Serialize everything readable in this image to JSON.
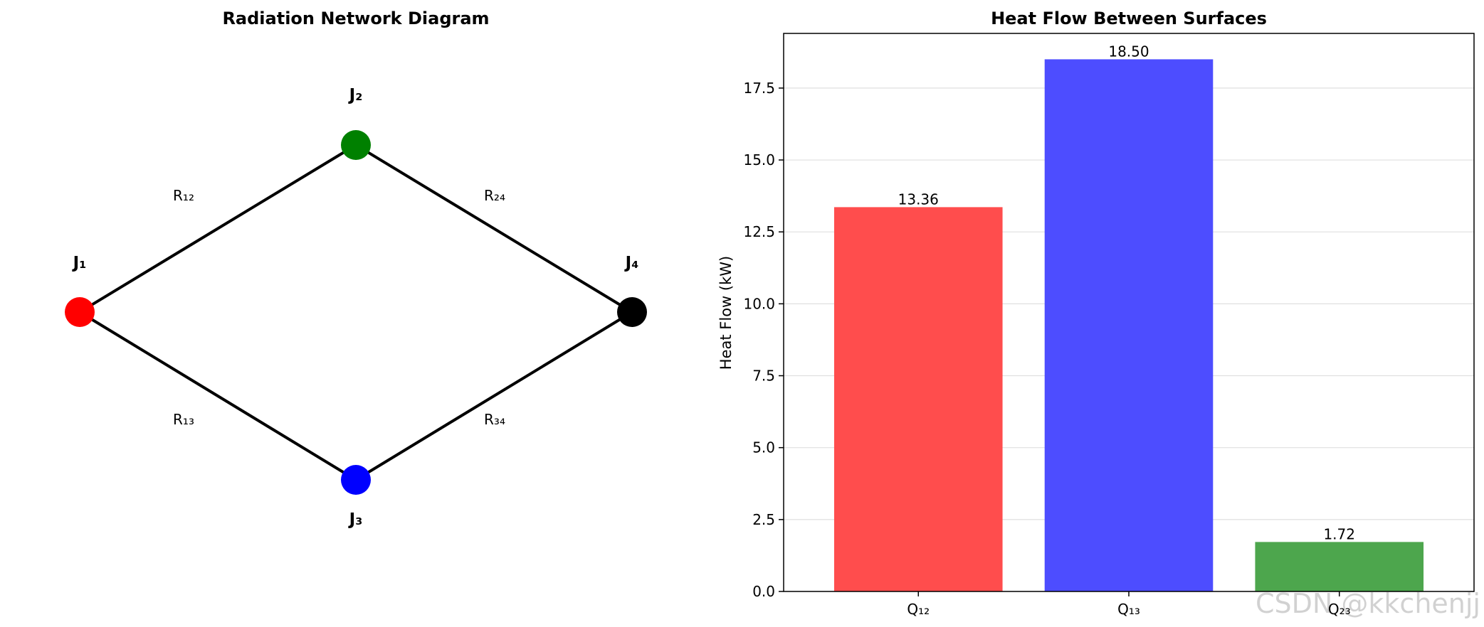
{
  "network": {
    "title": "Radiation Network Diagram",
    "nodes": [
      {
        "id": "J1",
        "label": "J₁",
        "color": "#ff0000"
      },
      {
        "id": "J2",
        "label": "J₂",
        "color": "#008000"
      },
      {
        "id": "J3",
        "label": "J₃",
        "color": "#0000ff"
      },
      {
        "id": "J4",
        "label": "J₄",
        "color": "#000000"
      }
    ],
    "edges": [
      {
        "from": "J1",
        "to": "J2",
        "label": "R₁₂"
      },
      {
        "from": "J2",
        "to": "J4",
        "label": "R₂₄"
      },
      {
        "from": "J1",
        "to": "J3",
        "label": "R₁₃"
      },
      {
        "from": "J3",
        "to": "J4",
        "label": "R₃₄"
      }
    ]
  },
  "watermark": "CSDN @kkchenjj",
  "chart_data": {
    "type": "bar",
    "title": "Heat Flow Between Surfaces",
    "xlabel": "",
    "ylabel": "Heat Flow (kW)",
    "categories": [
      "Q₁₂",
      "Q₁₃",
      "Q₂₃"
    ],
    "values": [
      13.36,
      18.5,
      1.72
    ],
    "value_labels": [
      "13.36",
      "18.50",
      "1.72"
    ],
    "colors": [
      "#ff4d4d",
      "#4d4dff",
      "#4da64d"
    ],
    "ylim": [
      0,
      19.4
    ],
    "yticks": [
      0.0,
      2.5,
      5.0,
      7.5,
      10.0,
      12.5,
      15.0,
      17.5
    ],
    "ytick_labels": [
      "0.0",
      "2.5",
      "5.0",
      "7.5",
      "10.0",
      "12.5",
      "15.0",
      "17.5"
    ],
    "grid": "y-axis only",
    "legend": "none"
  }
}
